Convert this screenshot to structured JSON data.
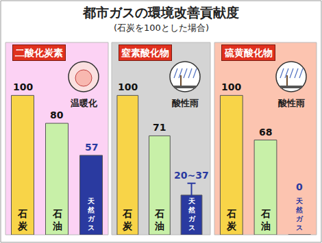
{
  "title": "都市ガスの環境改善貢献度",
  "subtitle": "(石炭を100とした場合)",
  "chart_data": [
    {
      "type": "bar",
      "title": "二酸化炭素",
      "annotations": [
        "温暖化"
      ],
      "categories": [
        "石炭",
        "石油",
        "天然ガス"
      ],
      "values": [
        100,
        80,
        57
      ],
      "colors": [
        "#f8d448",
        "#c8f0a8",
        "#2a3aa0"
      ],
      "ylim": [
        0,
        138
      ],
      "data_labels": true,
      "tick_labels": false,
      "grid": false
    },
    {
      "type": "bar",
      "title": "窒素酸化物",
      "annotations": [
        "酸性雨"
      ],
      "categories": [
        "石炭",
        "石油",
        "天然ガス"
      ],
      "values": [
        100,
        71,
        28.5
      ],
      "error": [
        0,
        0,
        8.5
      ],
      "value_labels": [
        "100",
        "71",
        "20~37"
      ],
      "colors": [
        "#f8d448",
        "#c8f0a8",
        "#2a3aa0"
      ],
      "ylim": [
        0,
        138
      ],
      "data_labels": true,
      "tick_labels": false,
      "grid": false
    },
    {
      "type": "bar",
      "title": "硫黄酸化物",
      "annotations": [
        "酸性雨"
      ],
      "categories": [
        "石炭",
        "石油",
        "天然ガス"
      ],
      "values": [
        100,
        68,
        0
      ],
      "colors": [
        "#f8d448",
        "#c8f0a8",
        "#2a3aa0"
      ],
      "ylim": [
        0,
        138
      ],
      "data_labels": true,
      "tick_labels": false,
      "grid": false
    }
  ]
}
